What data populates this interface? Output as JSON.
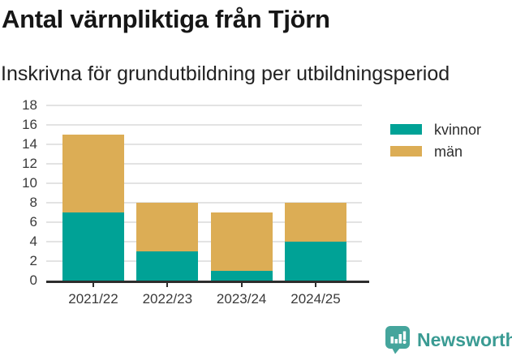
{
  "header": {
    "title": "Antal värnpliktiga från Tjörn",
    "subtitle": "Inskrivna för grundutbildning per utbildningsperiod"
  },
  "chart_data": {
    "type": "bar",
    "stacked": true,
    "title": "Antal värnpliktiga från Tjörn",
    "subtitle": "Inskrivna för grundutbildning per utbildningsperiod",
    "categories": [
      "2021/22",
      "2022/23",
      "2023/24",
      "2024/25"
    ],
    "series": [
      {
        "name": "kvinnor",
        "color": "#00a296",
        "values": [
          7,
          3,
          1,
          4
        ]
      },
      {
        "name": "män",
        "color": "#dcad55",
        "values": [
          8,
          5,
          6,
          4
        ]
      }
    ],
    "totals": [
      15,
      8,
      7,
      8
    ],
    "xlabel": "",
    "ylabel": "",
    "ylim": [
      0,
      18
    ],
    "yticks": [
      0,
      2,
      4,
      6,
      8,
      10,
      12,
      14,
      16,
      18
    ],
    "grid": true,
    "grid_color": "#e3e3e3",
    "axis_color": "#2d2d2d",
    "legend_position": "top-right"
  },
  "footer": {
    "brand": "Newsworthy",
    "brand_text_color": "#3a9b93",
    "brand_icon_color": "#45a59c",
    "brand_icon": "bar-chart-speech-bubble-icon"
  }
}
